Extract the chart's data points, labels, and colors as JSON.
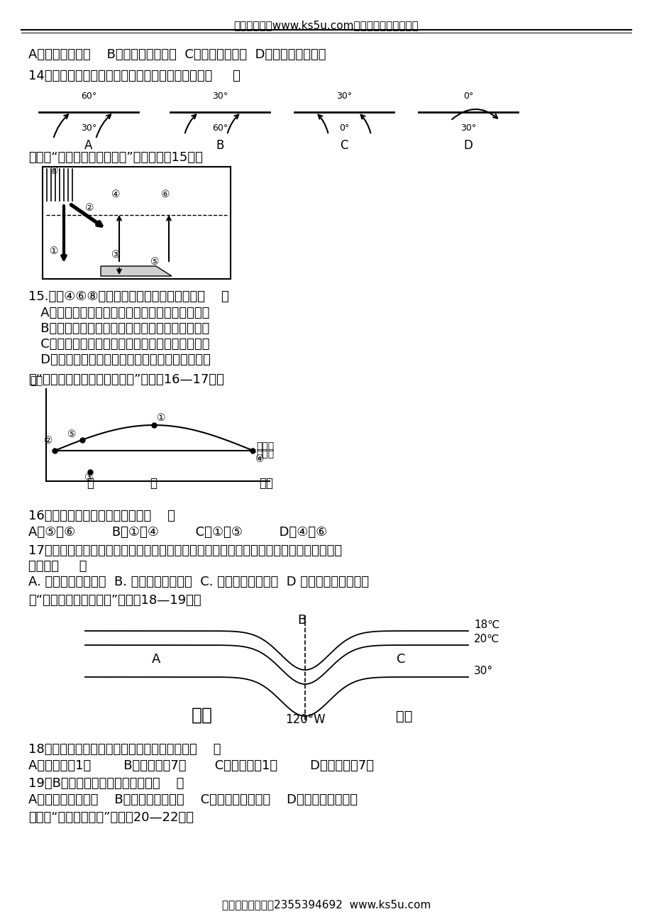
{
  "header_text": "高考资源网（www.ks5u.com），您身边的高考专家",
  "footer_text": "投稿兼职请联系：2355394692  www.ks5u.com",
  "bg_color": "#ffffff",
  "line1": "A．赤道低气压带    B．副极地低气压带  C．极地高气压带  D．副热带高气压带",
  "line2": "14．下列四幅风带图中，属于北半球东北信风的是（     ）",
  "line3": "下图为“大气受热过程示意图”，读图回筀15题。",
  "line4": "15.图中④⑥⑧三个箭头所表示的辐射依次是（    ）",
  "line5A": "   A．大气吸收的地面辐射、大气逆辐射、太阳辐射",
  "line5B": "   B．太阳辐射、大气吸收的地面辐射、大气逆辐射",
  "line5C": "   C．大气逆辐射、大气吸收的地面辐射、太阳辐射",
  "line5D": "   D．太阳辐射、大气逆辐射、大气吸收的地面辐射",
  "line6": "读“等高面与等压面关系示意图”，完成16—17题。",
  "line7": "16．图中表示气压相等的数码是（    ）",
  "line8": "A．⑤和⑥         B．①和④         C．①和⑤         D．④和⑥",
  "line9": "17．若上图是关于甲、乙两地对流层高空气压与等高面关系图，则关于两地大气状况叙述正",
  "line10": "确的是（     ）",
  "line11": "A. 甲地气压低于乙地  B. 甲地气温高于乙地  C. 甲地空气受热下降  D 乙地易形成阴雨天气",
  "line12": "读“某区域等温线分布图”，完成18—19题。",
  "line13": "18．对图示区域位置、季节的叙述，正确的是（    ）",
  "line14": "A．北半球，1月        B．南半球，7月       C．南半球，1月        D．北半球，7月",
  "line15": "19．B处洋流的性质和流向分别为（    ）",
  "line16": "A．寒流，由北向南    B．寒流，由南向北    C．暖流，由北向南    D．暖流，由南向北",
  "line17": "读下面“水循环示意图”，完成20—22题。"
}
